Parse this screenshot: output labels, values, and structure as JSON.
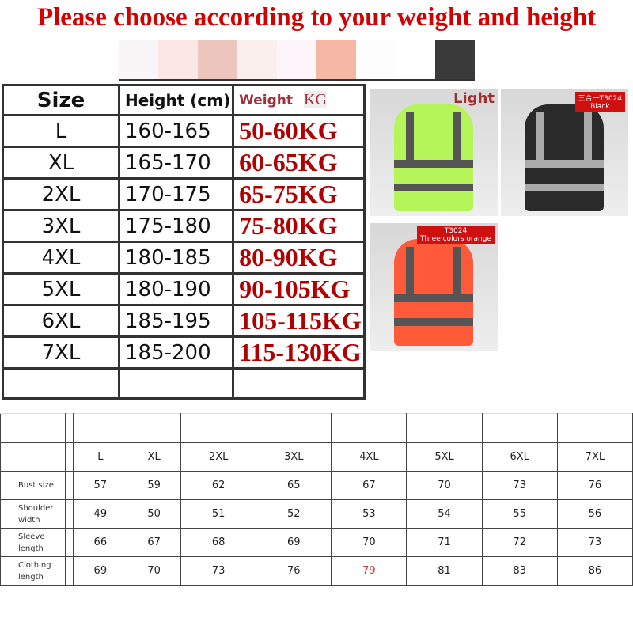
{
  "title": "Please choose according to your weight and height",
  "swatch_colors": [
    "#f8f6f6",
    "#fbe8e4",
    "#ecc6bc",
    "#fbefed",
    "#fdf5fa",
    "#f7b7a5",
    "#fdfdfd",
    "#ffffff",
    "#3a3a3a"
  ],
  "size_table": {
    "headers": [
      "Size",
      "Height (cm)",
      "Weight",
      "KG"
    ],
    "rows": [
      [
        "L",
        "160-165",
        "50-60KG"
      ],
      [
        "XL",
        "165-170",
        "60-65KG"
      ],
      [
        "2XL",
        "170-175",
        "65-75KG"
      ],
      [
        "3XL",
        "175-180",
        "75-80KG"
      ],
      [
        "4XL",
        "180-185",
        "80-90KG"
      ],
      [
        "5XL",
        "180-190",
        "90-105KG"
      ],
      [
        "6XL",
        "185-195",
        "105-115KG"
      ],
      [
        "7XL",
        "185-200",
        "115-130KG"
      ]
    ]
  },
  "products": [
    {
      "label": "Light",
      "color": "#b6f55a"
    },
    {
      "label": "Black",
      "tag": "三合一T3024",
      "color": "#2a2a2a"
    },
    {
      "label": "Three colors orange",
      "tag": "T3024",
      "color": "#ff5a3a"
    }
  ],
  "measure_table": {
    "sizes": [
      "L",
      "XL",
      "2XL",
      "3XL",
      "4XL",
      "5XL",
      "6XL",
      "7XL"
    ],
    "rows": [
      {
        "label": "Bust size",
        "values": [
          "57",
          "59",
          "62",
          "65",
          "67",
          "70",
          "73",
          "76"
        ]
      },
      {
        "label": "Shoulder width",
        "values": [
          "49",
          "50",
          "51",
          "52",
          "53",
          "54",
          "55",
          "56"
        ]
      },
      {
        "label": "Sleeve length",
        "values": [
          "66",
          "67",
          "68",
          "69",
          "70",
          "71",
          "72",
          "73"
        ]
      },
      {
        "label": "Clothing length",
        "values": [
          "69",
          "70",
          "73",
          "76",
          "79",
          "81",
          "83",
          "86"
        ]
      }
    ]
  }
}
